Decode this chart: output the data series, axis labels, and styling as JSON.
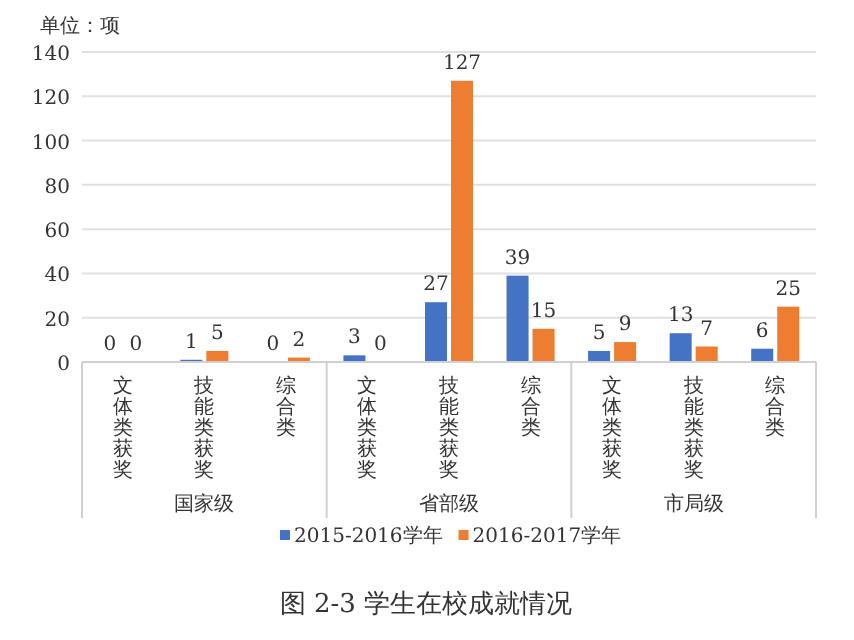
{
  "chart_data": {
    "type": "bar",
    "title": "图 2-3 学生在校成就情况",
    "categories": [
      "文体类获奖",
      "技能类获奖",
      "综合类",
      "文体类获奖",
      "技能类获奖",
      "综合类",
      "文体类获奖",
      "技能类获奖",
      "综合类"
    ],
    "series": [
      {
        "name": "2015-2016学年",
        "color": "#4472c4",
        "values": [
          0,
          1,
          0,
          3,
          27,
          39,
          5,
          13,
          6
        ]
      },
      {
        "name": "2016-2017学年",
        "color": "#ed7d31",
        "values": [
          0,
          5,
          2,
          0,
          127,
          15,
          9,
          7,
          25
        ]
      }
    ],
    "ylim": [
      0,
      140
    ],
    "yticks": [
      0,
      20,
      40,
      60,
      80,
      100,
      120,
      140
    ],
    "grid": "y",
    "legend": "bottom",
    "data_labels": true,
    "annotations": [
      "单位：项",
      "国家级",
      "省部级",
      "市局级"
    ]
  }
}
